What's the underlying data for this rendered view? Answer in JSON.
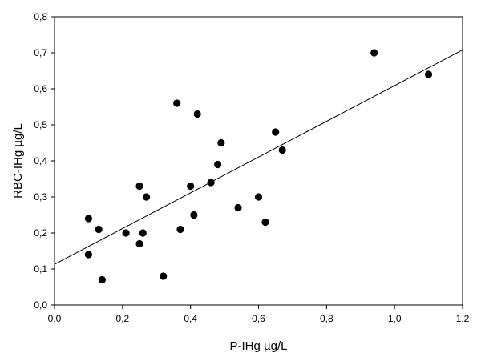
{
  "chart_data": {
    "type": "scatter",
    "xlabel": "P-IHg µg/L",
    "ylabel": "RBC-IHg µg/L",
    "xlim": [
      0.0,
      1.2
    ],
    "ylim": [
      0.0,
      0.8
    ],
    "x_ticks": [
      "0,0",
      "0,2",
      "0,4",
      "0,6",
      "0,8",
      "1,0",
      "1,2"
    ],
    "y_ticks": [
      "0,0",
      "0,1",
      "0,2",
      "0,3",
      "0,4",
      "0,5",
      "0,6",
      "0,7",
      "0,8"
    ],
    "x_tick_values": [
      0.0,
      0.2,
      0.4,
      0.6,
      0.8,
      1.0,
      1.2
    ],
    "y_tick_values": [
      0.0,
      0.1,
      0.2,
      0.3,
      0.4,
      0.5,
      0.6,
      0.7,
      0.8
    ],
    "grid": false,
    "marker_color": "#000000",
    "line_color": "#000000",
    "points": [
      {
        "x": 0.1,
        "y": 0.24
      },
      {
        "x": 0.1,
        "y": 0.14
      },
      {
        "x": 0.13,
        "y": 0.21
      },
      {
        "x": 0.14,
        "y": 0.07
      },
      {
        "x": 0.21,
        "y": 0.2
      },
      {
        "x": 0.25,
        "y": 0.33
      },
      {
        "x": 0.25,
        "y": 0.17
      },
      {
        "x": 0.26,
        "y": 0.2
      },
      {
        "x": 0.27,
        "y": 0.3
      },
      {
        "x": 0.32,
        "y": 0.08
      },
      {
        "x": 0.36,
        "y": 0.56
      },
      {
        "x": 0.37,
        "y": 0.21
      },
      {
        "x": 0.4,
        "y": 0.33
      },
      {
        "x": 0.41,
        "y": 0.25
      },
      {
        "x": 0.42,
        "y": 0.53
      },
      {
        "x": 0.46,
        "y": 0.34
      },
      {
        "x": 0.48,
        "y": 0.39
      },
      {
        "x": 0.49,
        "y": 0.45
      },
      {
        "x": 0.54,
        "y": 0.27
      },
      {
        "x": 0.6,
        "y": 0.3
      },
      {
        "x": 0.62,
        "y": 0.23
      },
      {
        "x": 0.65,
        "y": 0.48
      },
      {
        "x": 0.67,
        "y": 0.43
      },
      {
        "x": 0.94,
        "y": 0.7
      },
      {
        "x": 1.1,
        "y": 0.64
      }
    ],
    "regression_line": {
      "x": [
        0.0,
        1.2
      ],
      "y": [
        0.113,
        0.708
      ]
    }
  }
}
